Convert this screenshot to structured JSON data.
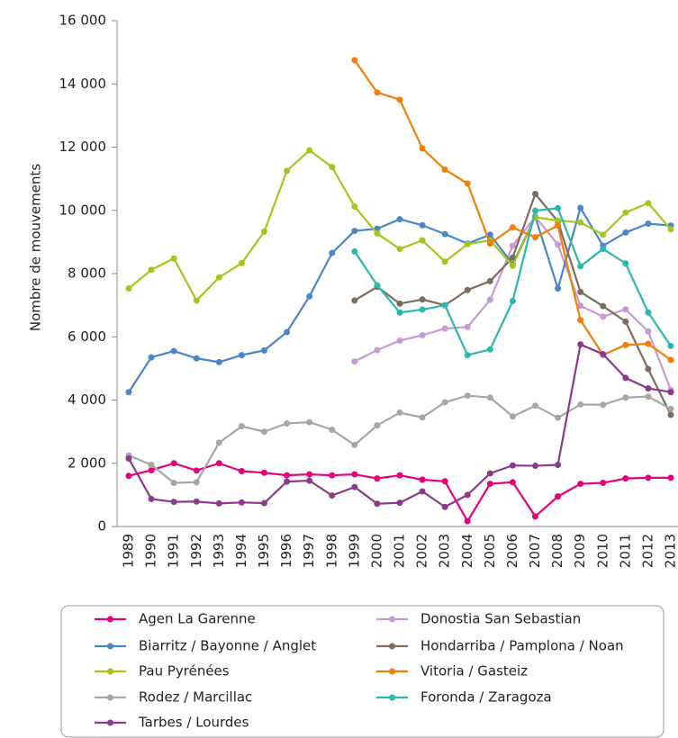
{
  "chart_data": {
    "type": "line",
    "y_label": "Nombre de mouvements",
    "categories": [
      "1989",
      "1990",
      "1991",
      "1992",
      "1993",
      "1994",
      "1995",
      "1996",
      "1997",
      "1998",
      "1999",
      "2000",
      "2001",
      "2002",
      "2003",
      "2004",
      "2005",
      "2006",
      "2007",
      "2008",
      "2009",
      "2010",
      "2011",
      "2012",
      "2013"
    ],
    "ylim": [
      0,
      16000
    ],
    "yticks": [
      0,
      {
        "value": 2000,
        "label": "2 000"
      },
      {
        "value": 4000,
        "label": "4 000"
      },
      {
        "value": 6000,
        "label": "6 000"
      },
      {
        "value": 8000,
        "label": "8 000"
      },
      {
        "value": 10000,
        "label": "10 000"
      },
      {
        "value": 12000,
        "label": "12 000"
      },
      {
        "value": 14000,
        "label": "14 000"
      },
      {
        "value": 16000,
        "label": "16 000"
      }
    ],
    "grid": false,
    "legend": "bottom",
    "series": [
      {
        "name": "Agen La Garenne",
        "color": "#e6007e",
        "values": [
          1600,
          1780,
          2000,
          1770,
          2000,
          1750,
          1700,
          1620,
          1650,
          1620,
          1650,
          1520,
          1620,
          1480,
          1430,
          170,
          1350,
          1400,
          320,
          950,
          1350,
          1380,
          1520,
          1540,
          1540
        ]
      },
      {
        "name": "Donostia San Sebastian",
        "color": "#c79ad6",
        "values": [
          null,
          null,
          null,
          null,
          null,
          null,
          null,
          null,
          null,
          null,
          5220,
          5580,
          5880,
          6050,
          6260,
          6310,
          7170,
          8880,
          9800,
          8920,
          6980,
          6640,
          6870,
          6170,
          4320
        ]
      },
      {
        "name": "Biarritz / Bayonne / Anglet",
        "color": "#4a86c8",
        "values": [
          4250,
          5350,
          5550,
          5320,
          5200,
          5420,
          5570,
          6150,
          7280,
          8650,
          9350,
          9420,
          9720,
          9530,
          9250,
          8950,
          9230,
          8300,
          9800,
          7530,
          10080,
          8880,
          9300,
          9580,
          9520
        ]
      },
      {
        "name": "Hondarriba / Pamplona / Noan",
        "color": "#7f6a5e",
        "values": [
          null,
          null,
          null,
          null,
          null,
          null,
          null,
          null,
          null,
          null,
          7150,
          7580,
          7050,
          7180,
          7000,
          7480,
          7760,
          8510,
          10520,
          9650,
          7420,
          6970,
          6480,
          4980,
          3530
        ]
      },
      {
        "name": "Pau Pyrénées",
        "color": "#a3c61c",
        "values": [
          7530,
          8120,
          8480,
          7150,
          7880,
          8330,
          9330,
          11250,
          11900,
          11370,
          10120,
          9270,
          8780,
          9050,
          8380,
          8930,
          9050,
          8250,
          9780,
          9680,
          9620,
          9230,
          9930,
          10230,
          9400
        ]
      },
      {
        "name": "Vitoria / Gasteiz",
        "color": "#f07f09",
        "values": [
          null,
          null,
          null,
          null,
          null,
          null,
          null,
          null,
          null,
          null,
          14750,
          13730,
          13500,
          11960,
          11290,
          10850,
          8950,
          9460,
          9150,
          9520,
          6530,
          5430,
          5740,
          5780,
          5270
        ]
      },
      {
        "name": "Rodez / Marcillac",
        "color": "#a6a6a6",
        "values": [
          2250,
          1950,
          1380,
          1400,
          2650,
          3170,
          3000,
          3260,
          3300,
          3060,
          2580,
          3200,
          3600,
          3450,
          3930,
          4140,
          4080,
          3480,
          3820,
          3440,
          3860,
          3850,
          4080,
          4110,
          3720
        ]
      },
      {
        "name": "Foronda / Zaragoza",
        "color": "#2cb6b0",
        "values": [
          null,
          null,
          null,
          null,
          null,
          null,
          null,
          null,
          null,
          null,
          8700,
          7630,
          6770,
          6860,
          7000,
          5420,
          5600,
          7130,
          9990,
          10070,
          8230,
          8780,
          8320,
          6770,
          5710
        ]
      },
      {
        "name": "Tarbes / Lourdes",
        "color": "#8b3a8b",
        "values": [
          2150,
          870,
          780,
          790,
          730,
          760,
          740,
          1420,
          1450,
          980,
          1250,
          720,
          750,
          1110,
          620,
          1000,
          1680,
          1930,
          1920,
          1950,
          5760,
          5450,
          4700,
          4370,
          4250
        ]
      }
    ]
  }
}
